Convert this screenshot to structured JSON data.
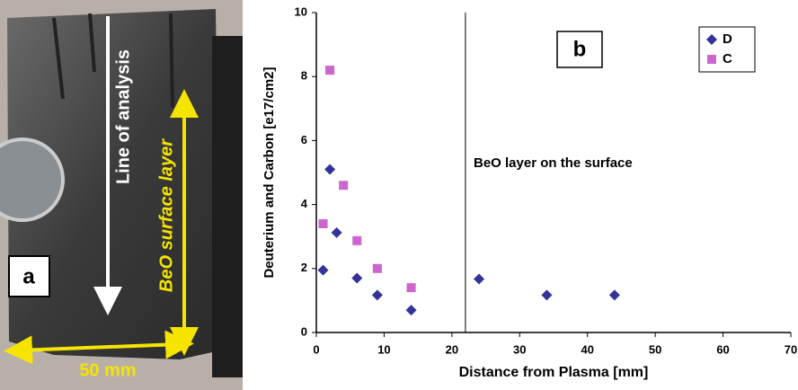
{
  "photo": {
    "panel_label": "a",
    "analysis_line": "Line of analysis",
    "layer": "BeO surface layer",
    "scale": "50 mm"
  },
  "chart_data": {
    "type": "scatter",
    "panel_label": "b",
    "x_label": "Distance from Plasma [mm]",
    "y_label": "Deuterium and Carbon [e17/cm2]",
    "annotation": "BeO layer on the surface",
    "vline": 22,
    "xlim": [
      0,
      70
    ],
    "xticks": [
      0,
      10,
      20,
      30,
      40,
      50,
      60,
      70
    ],
    "ylim": [
      0,
      10
    ],
    "yticks": [
      0,
      2,
      4,
      6,
      8,
      10
    ],
    "grid": false,
    "legend": "upper right",
    "series": [
      {
        "name": "D",
        "color": "#333399",
        "marker": "diamond",
        "x": [
          1,
          2,
          3,
          6,
          9,
          14,
          24,
          34,
          44
        ],
        "values": [
          1.95,
          5.1,
          3.12,
          1.7,
          1.17,
          0.7,
          1.67,
          1.17,
          1.17
        ]
      },
      {
        "name": "C",
        "color": "#cc66cc",
        "marker": "square",
        "x": [
          2,
          1,
          4,
          6,
          9,
          14
        ],
        "values": [
          8.2,
          3.4,
          4.6,
          2.87,
          2.0,
          1.4
        ]
      }
    ]
  }
}
